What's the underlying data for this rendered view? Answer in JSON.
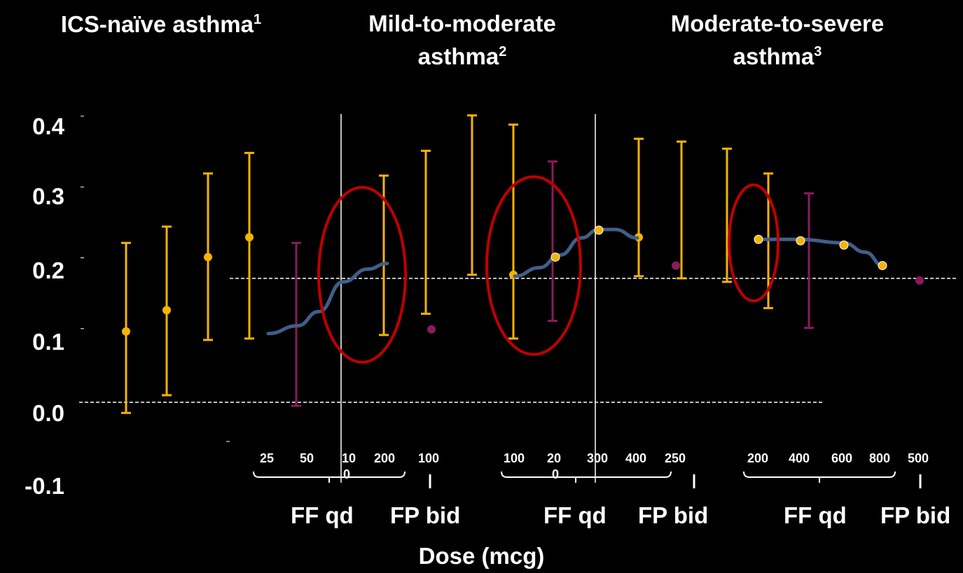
{
  "chart_data": {
    "type": "scatter",
    "panels": [
      {
        "title": "ICS-naïve asthma",
        "superscript": "1"
      },
      {
        "title": "Mild-to-moderate asthma",
        "superscript": "2"
      },
      {
        "title": "Moderate-to-severe asthma",
        "superscript": "3"
      }
    ],
    "y_ticks": [
      "0.4",
      "0.3",
      "0.2",
      "0.1",
      "0.0",
      "-0.1"
    ],
    "ylim": [
      -0.1,
      0.4
    ],
    "xlabel": "Dose (mcg)",
    "dose_labels": [
      "25",
      "50",
      "10",
      "0",
      "200",
      "100",
      "100",
      "20",
      "0",
      "300",
      "400",
      "250",
      "200",
      "400",
      "600",
      "800",
      "500"
    ],
    "group_labels": [
      "FF qd",
      "FP bid",
      "FF qd",
      "FP bid",
      "FF qd",
      "FP bid"
    ],
    "colors": {
      "ff_errorbar": "#f5b400",
      "fp_errorbar": "#8b1a5c",
      "fit_curve": "#3f5f8a",
      "highlight_ellipse": "#c00000",
      "reference_line": "#ffffff"
    },
    "errorbars": [
      {
        "x": 180,
        "mean": 0.1,
        "lo": -0.015,
        "hi": 0.225,
        "color": "ff"
      },
      {
        "x": 238,
        "mean": 0.13,
        "lo": 0.01,
        "hi": 0.248,
        "color": "ff"
      },
      {
        "x": 297,
        "mean": 0.205,
        "lo": 0.088,
        "hi": 0.323,
        "color": "ff"
      },
      {
        "x": 356,
        "mean": 0.233,
        "lo": 0.09,
        "hi": 0.352,
        "color": "ff"
      },
      {
        "x": 423,
        "mean": null,
        "lo": -0.005,
        "hi": 0.225,
        "color": "fp"
      },
      {
        "x": 548,
        "mean": null,
        "lo": 0.095,
        "hi": 0.32,
        "color": "ff"
      },
      {
        "x": 608,
        "mean": null,
        "lo": 0.125,
        "hi": 0.355,
        "color": "ff"
      },
      {
        "x": 674,
        "mean": null,
        "lo": 0.18,
        "hi": 0.405,
        "color": "ff"
      },
      {
        "x": 733,
        "mean": 0.18,
        "lo": 0.09,
        "hi": 0.392,
        "color": "ff"
      },
      {
        "x": 789,
        "mean": null,
        "lo": 0.115,
        "hi": 0.34,
        "color": "fp"
      },
      {
        "x": 912,
        "mean": 0.233,
        "lo": 0.178,
        "hi": 0.372,
        "color": "ff"
      },
      {
        "x": 973,
        "mean": null,
        "lo": 0.175,
        "hi": 0.368,
        "color": "ff"
      },
      {
        "x": 1038,
        "mean": null,
        "lo": 0.17,
        "hi": 0.358,
        "color": "ff"
      },
      {
        "x": 1097,
        "mean": null,
        "lo": 0.133,
        "hi": 0.323,
        "color": "ff"
      },
      {
        "x": 1155,
        "mean": null,
        "lo": 0.105,
        "hi": 0.295,
        "color": "fp"
      }
    ],
    "points": [
      {
        "x": 616,
        "y": 0.103,
        "color": "fp"
      },
      {
        "x": 793,
        "y": 0.205,
        "color": "ff"
      },
      {
        "x": 855,
        "y": 0.243,
        "color": "ff"
      },
      {
        "x": 965,
        "y": 0.193,
        "color": "fp"
      },
      {
        "x": 1083,
        "y": 0.23,
        "color": "ff"
      },
      {
        "x": 1143,
        "y": 0.228,
        "color": "ff"
      },
      {
        "x": 1205,
        "y": 0.222,
        "color": "ff"
      },
      {
        "x": 1260,
        "y": 0.193,
        "color": "ff"
      },
      {
        "x": 1313,
        "y": 0.172,
        "color": "fp"
      }
    ],
    "fit_curves": [
      [
        [
          383,
          0.097
        ],
        [
          425,
          0.108
        ],
        [
          455,
          0.128
        ],
        [
          490,
          0.17
        ],
        [
          525,
          0.188
        ],
        [
          553,
          0.196
        ]
      ],
      [
        [
          735,
          0.178
        ],
        [
          770,
          0.19
        ],
        [
          800,
          0.208
        ],
        [
          830,
          0.232
        ],
        [
          855,
          0.244
        ],
        [
          878,
          0.244
        ],
        [
          910,
          0.232
        ]
      ],
      [
        [
          1083,
          0.23
        ],
        [
          1140,
          0.23
        ],
        [
          1205,
          0.225
        ],
        [
          1235,
          0.212
        ],
        [
          1262,
          0.192
        ]
      ]
    ],
    "reference_lines": [
      {
        "y": 0.0,
        "x1": 113,
        "x2": 1175,
        "style": "dashed"
      },
      {
        "y": 0.175,
        "x1": 328,
        "x2": 1368,
        "style": "dashed"
      }
    ],
    "highlights": [
      {
        "cx": 517,
        "cy": 0.18,
        "rx": 62,
        "ry": 125
      },
      {
        "cx": 762,
        "cy": 0.193,
        "rx": 67,
        "ry": 127
      },
      {
        "cx": 1076,
        "cy": 0.225,
        "rx": 35,
        "ry": 83
      }
    ],
    "separators": [
      487,
      850
    ]
  }
}
